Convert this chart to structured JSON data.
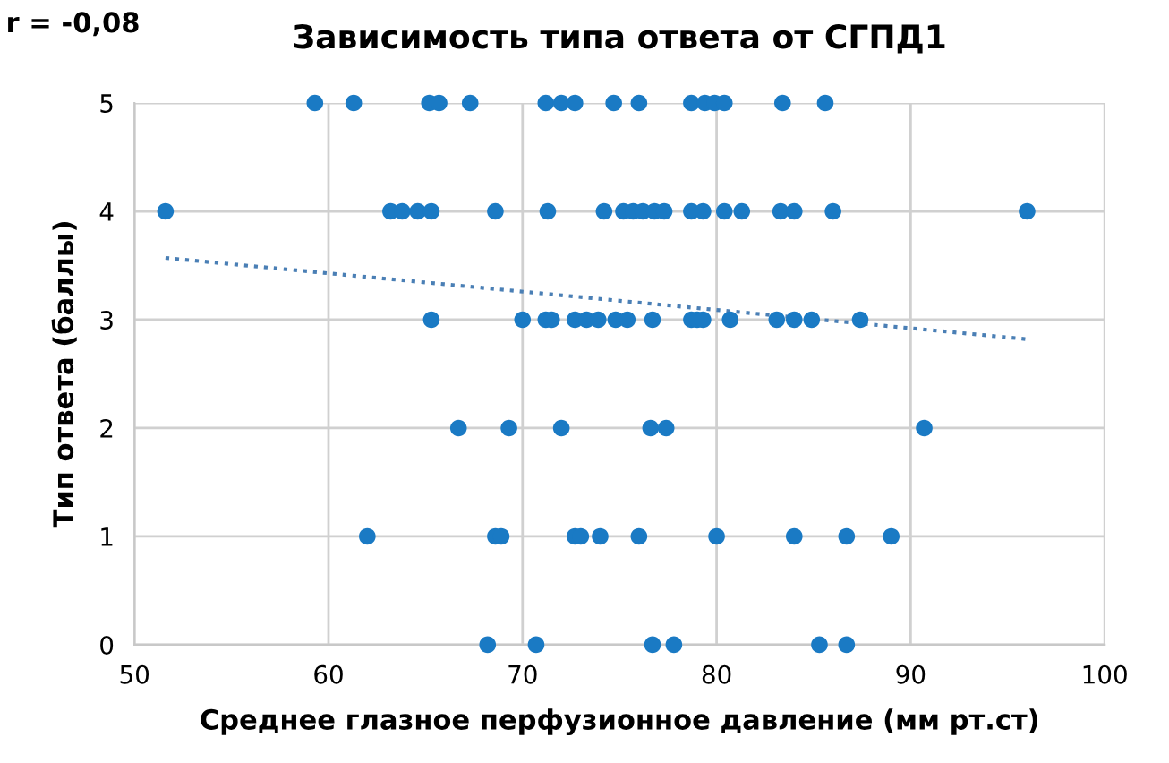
{
  "chart_data": {
    "type": "scatter",
    "title": "Зависимость типа ответа от СГПД1",
    "xlabel": "Среднее глазное перфузионное давление (мм рт.ст)",
    "ylabel": "Тип ответа (баллы)",
    "annotations": [
      "r = -0,08"
    ],
    "xlim": [
      50,
      100
    ],
    "xticks": [
      50,
      60,
      70,
      80,
      90,
      100
    ],
    "ylim": [
      0,
      5
    ],
    "yticks": [
      0,
      1,
      2,
      3,
      4,
      5
    ],
    "grid": true,
    "marker": "circle",
    "series": [
      {
        "color": "#1a7ac4",
        "x": [
          59.3,
          61.3,
          65.2,
          65.7,
          67.3,
          71.2,
          72.0,
          72.7,
          74.7,
          76.0,
          78.7,
          79.4,
          79.9,
          80.4,
          83.4,
          85.6,
          51.6,
          63.2,
          63.8,
          64.6,
          65.3,
          68.6,
          71.3,
          74.2,
          75.2,
          75.7,
          76.2,
          76.8,
          77.3,
          78.7,
          79.3,
          80.4,
          81.3,
          83.3,
          84.0,
          86.0,
          96.0,
          65.3,
          70.0,
          71.2,
          71.5,
          72.7,
          73.3,
          73.9,
          74.8,
          75.4,
          76.7,
          78.7,
          79.0,
          79.3,
          80.7,
          83.1,
          84.0,
          84.9,
          87.4,
          66.7,
          69.3,
          72.0,
          76.6,
          77.4,
          90.7,
          62.0,
          68.6,
          68.9,
          72.7,
          73.0,
          74.0,
          76.0,
          80.0,
          84.0,
          86.7,
          89.0,
          68.2,
          70.7,
          76.7,
          77.8,
          85.3,
          86.7
        ],
        "values": [
          5,
          5,
          5,
          5,
          5,
          5,
          5,
          5,
          5,
          5,
          5,
          5,
          5,
          5,
          5,
          5,
          4,
          4,
          4,
          4,
          4,
          4,
          4,
          4,
          4,
          4,
          4,
          4,
          4,
          4,
          4,
          4,
          4,
          4,
          4,
          4,
          4,
          3,
          3,
          3,
          3,
          3,
          3,
          3,
          3,
          3,
          3,
          3,
          3,
          3,
          3,
          3,
          3,
          3,
          3,
          2,
          2,
          2,
          2,
          2,
          2,
          1,
          1,
          1,
          1,
          1,
          1,
          1,
          1,
          1,
          1,
          1,
          0,
          0,
          0,
          0,
          0,
          0
        ]
      },
      {
        "type": "line",
        "color": "#4a7fb5",
        "line_style": "dotted",
        "marker": "none",
        "x": [
          51.6,
          96.0
        ],
        "values": [
          3.57,
          2.82
        ]
      }
    ]
  }
}
